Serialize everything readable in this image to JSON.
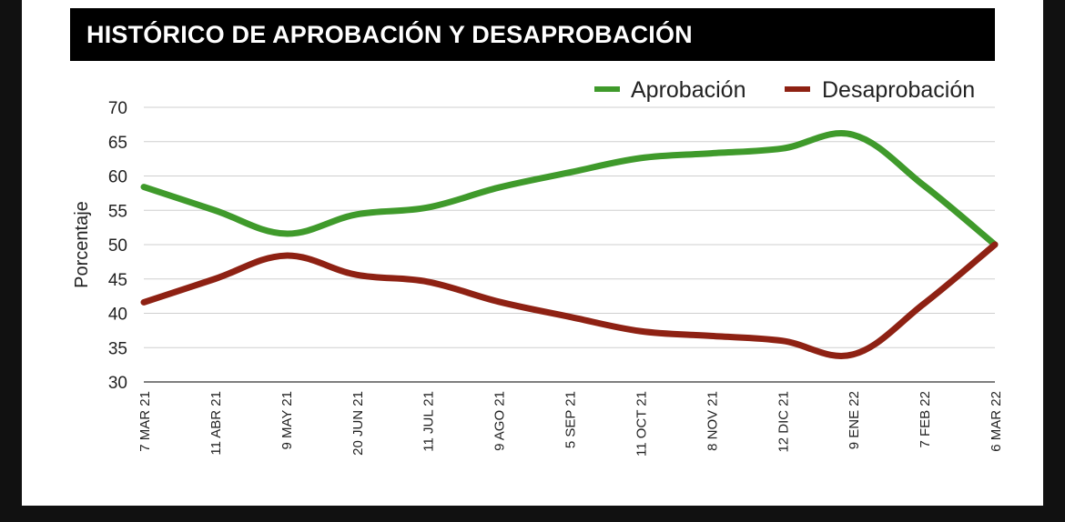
{
  "chart_data": {
    "type": "line",
    "title": "HISTÓRICO DE APROBACIÓN Y DESAPROBACIÓN",
    "xlabel": "",
    "ylabel": "Porcentaje",
    "ylim": [
      30,
      70
    ],
    "yticks": [
      30,
      35,
      40,
      45,
      50,
      55,
      60,
      65,
      70
    ],
    "grid": true,
    "legend_position": "top-right",
    "categories": [
      "7 MAR 21",
      "11 ABR 21",
      "9 MAY 21",
      "20 JUN 21",
      "11 JUL 21",
      "9 AGO 21",
      "5 SEP 21",
      "11 OCT 21",
      "8 NOV 21",
      "12 DIC 21",
      "9 ENE 22",
      "7 FEB 22",
      "6 MAR 22"
    ],
    "series": [
      {
        "name": "Aprobación",
        "color": "#3f9a2b",
        "values": [
          58.4,
          55.0,
          51.6,
          54.4,
          55.4,
          58.3,
          60.5,
          62.6,
          63.3,
          64.0,
          66.0,
          58.6,
          50.0
        ]
      },
      {
        "name": "Desaprobación",
        "color": "#8e2113",
        "values": [
          41.6,
          45.0,
          48.4,
          45.6,
          44.6,
          41.7,
          39.5,
          37.4,
          36.7,
          36.0,
          34.0,
          41.4,
          50.0
        ]
      }
    ]
  }
}
